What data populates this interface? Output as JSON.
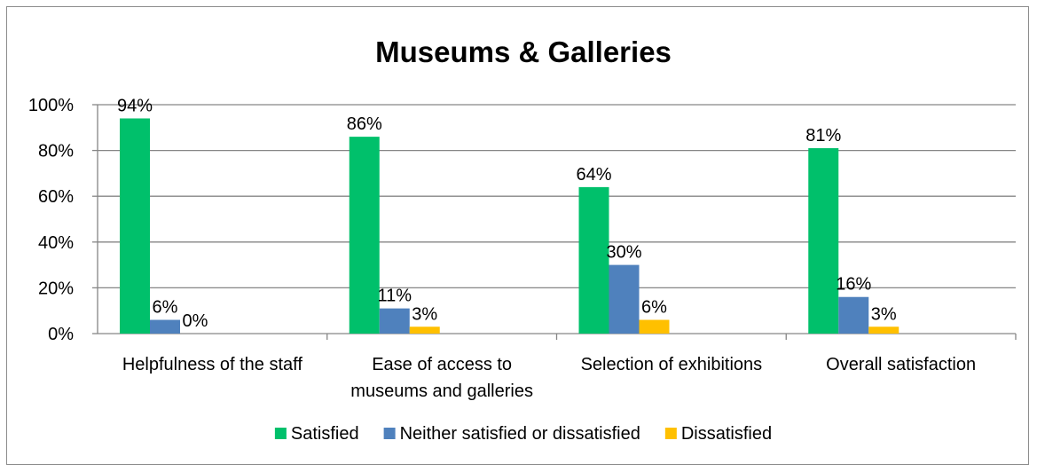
{
  "chart_data": {
    "type": "bar",
    "title": "Museums & Galleries",
    "xlabel": "",
    "ylabel": "",
    "ylim": [
      0,
      100
    ],
    "yticks": [
      "0%",
      "20%",
      "40%",
      "60%",
      "80%",
      "100%"
    ],
    "categories": [
      [
        "Helpfulness of the staff"
      ],
      [
        "Ease of access to",
        "museums and galleries"
      ],
      [
        "Selection of exhibitions"
      ],
      [
        "Overall satisfaction"
      ]
    ],
    "series": [
      {
        "name": "Satisfied",
        "color": "#00C06B",
        "values": [
          94,
          86,
          64,
          81
        ],
        "labels": [
          "94%",
          "86%",
          "64%",
          "81%"
        ]
      },
      {
        "name": "Neither satisfied or dissatisfied",
        "color": "#4F81BD",
        "values": [
          6,
          11,
          30,
          16
        ],
        "labels": [
          "6%",
          "11%",
          "30%",
          "16%"
        ]
      },
      {
        "name": "Dissatisfied",
        "color": "#FFC000",
        "values": [
          0,
          3,
          6,
          3
        ],
        "labels": [
          "0%",
          "3%",
          "6%",
          "3%"
        ]
      }
    ],
    "grid": true,
    "legend": "bottom"
  }
}
